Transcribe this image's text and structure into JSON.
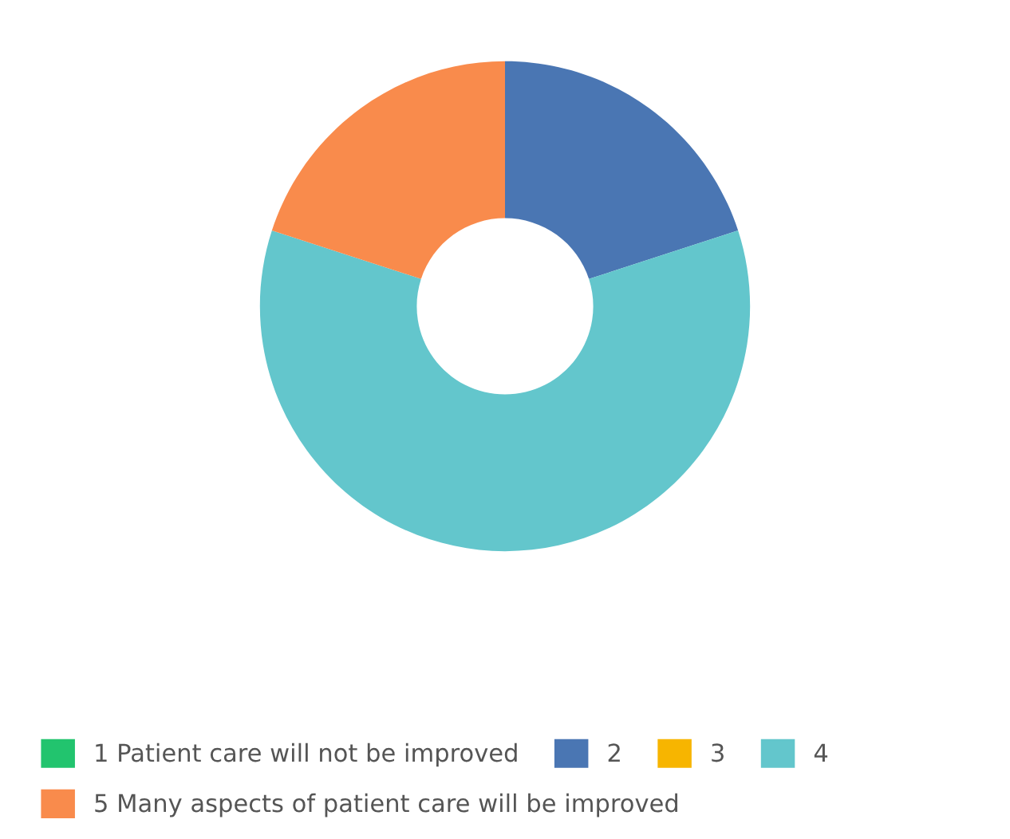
{
  "chart_data": {
    "type": "donut",
    "categories": [
      "1 Patient care will not be improved",
      "2",
      "3",
      "4",
      "5 Many aspects of patient care will be improved"
    ],
    "values": [
      0,
      20,
      0,
      60,
      20
    ],
    "colors": [
      "#22c46e",
      "#4a76b3",
      "#f7b500",
      "#63c6cc",
      "#f98b4c"
    ],
    "legend": "bottom"
  }
}
